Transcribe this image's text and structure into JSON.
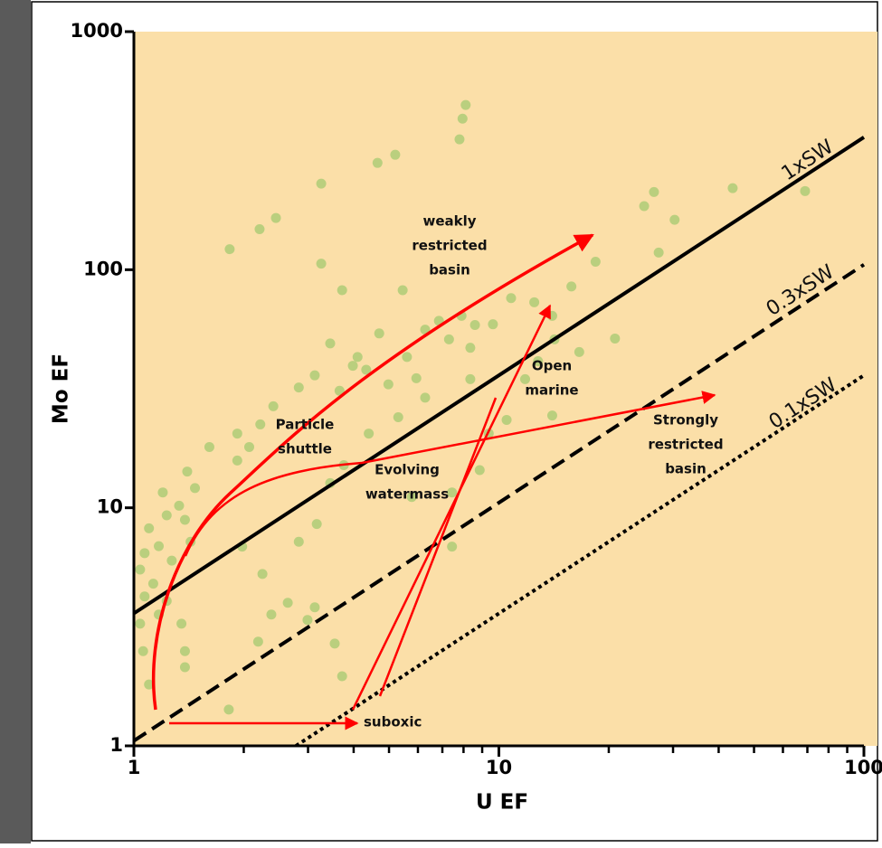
{
  "chart_data": {
    "type": "scatter",
    "x_label": "U EF",
    "y_label": "Mo EF",
    "xlim": [
      1,
      100
    ],
    "ylim": [
      1,
      1000
    ],
    "xticks": [
      1,
      10,
      100
    ],
    "yticks": [
      1,
      10,
      100,
      1000
    ],
    "xminorticks": [
      2,
      3,
      4,
      5,
      6,
      7,
      8,
      9,
      20,
      30,
      40,
      50,
      60,
      70,
      80,
      90
    ],
    "xscale": "log",
    "yscale": "log",
    "background": "#fbdfa8",
    "point_color": "#8fc463",
    "x": [
      8.11,
      7.95,
      7.8,
      5.2,
      4.65,
      3.26,
      26.6,
      43.7,
      69,
      2.45,
      2.21,
      1.83,
      25,
      30.3,
      27.4,
      18.4,
      3.26,
      5.45,
      3.72,
      15.8,
      10.8,
      12.5,
      7.9,
      6.85,
      6.28,
      9.63,
      7.3,
      8.35,
      14.2,
      3.45,
      4.7,
      4.1,
      5.6,
      3.13,
      2.83,
      3.66,
      4.33,
      4.98,
      5.94,
      6.28,
      5.3,
      4.4,
      2.41,
      2.22,
      1.92,
      2.07,
      1.61,
      1.92,
      1.4,
      1.47,
      1.2,
      1.33,
      1.38,
      1.23,
      1.43,
      1.1,
      1.17,
      1.07,
      1.27,
      1.04,
      1.13,
      1.07,
      1.23,
      1.17,
      1.04,
      1.35,
      1.38,
      1.06,
      1.1,
      1.38,
      1.82,
      2.19,
      2.38,
      2.25,
      1.98,
      2.83,
      3.17,
      3.45,
      3.76,
      2.64,
      3.13,
      2.99,
      3.55,
      3.72,
      7.44,
      5.77,
      7.44,
      8.86,
      9.38,
      10.5,
      8.35,
      11.8,
      14,
      12.8,
      16.6,
      20.8,
      14,
      8.6,
      3.98
    ],
    "values": [
      492,
      431,
      353,
      304,
      281,
      230,
      212,
      220,
      214,
      165,
      148,
      122,
      185,
      162,
      118,
      108,
      106,
      82,
      82,
      85,
      76,
      73,
      64,
      61,
      56,
      59,
      51,
      47,
      51,
      49,
      54,
      43,
      43,
      36,
      32,
      31,
      38,
      33,
      35,
      29,
      24,
      20.5,
      26.7,
      22.4,
      20.5,
      18,
      18,
      15.8,
      14.2,
      12.1,
      11.6,
      10.2,
      8.9,
      9.3,
      7.2,
      8.2,
      6.9,
      6.45,
      6,
      5.5,
      4.8,
      4.24,
      4.06,
      3.56,
      3.26,
      3.26,
      2.5,
      2.5,
      1.81,
      2.14,
      1.42,
      2.74,
      3.56,
      5.27,
      6.87,
      7.2,
      8.55,
      12.7,
      15.1,
      3.99,
      3.82,
      3.38,
      2.69,
      1.96,
      6.87,
      11.1,
      11.6,
      14.4,
      20.5,
      23.4,
      34.7,
      34.7,
      24.4,
      41.3,
      45.1,
      51.4,
      64,
      58.6,
      39.5
    ],
    "series": [
      {
        "name": "1xSW",
        "color": "#000000",
        "dash": "solid",
        "x": [
          1,
          100
        ],
        "values": [
          3.6,
          360
        ]
      },
      {
        "name": "0.3xSW",
        "color": "#000000",
        "dash": "dashed",
        "x": [
          1,
          100
        ],
        "values": [
          1.05,
          105
        ]
      },
      {
        "name": "0.1xSW",
        "color": "#000000",
        "dash": "dotted",
        "x": [
          2.78,
          100
        ],
        "values": [
          1,
          36
        ]
      }
    ],
    "annotations": [
      [
        "weakly",
        "restricted",
        "basin"
      ],
      [
        "Particle",
        "shuttle"
      ],
      [
        "Evolving",
        "watermass"
      ],
      [
        "Open",
        "marine"
      ],
      [
        "Strongly",
        "restricted",
        "basin"
      ],
      [
        "suboxic"
      ]
    ]
  }
}
